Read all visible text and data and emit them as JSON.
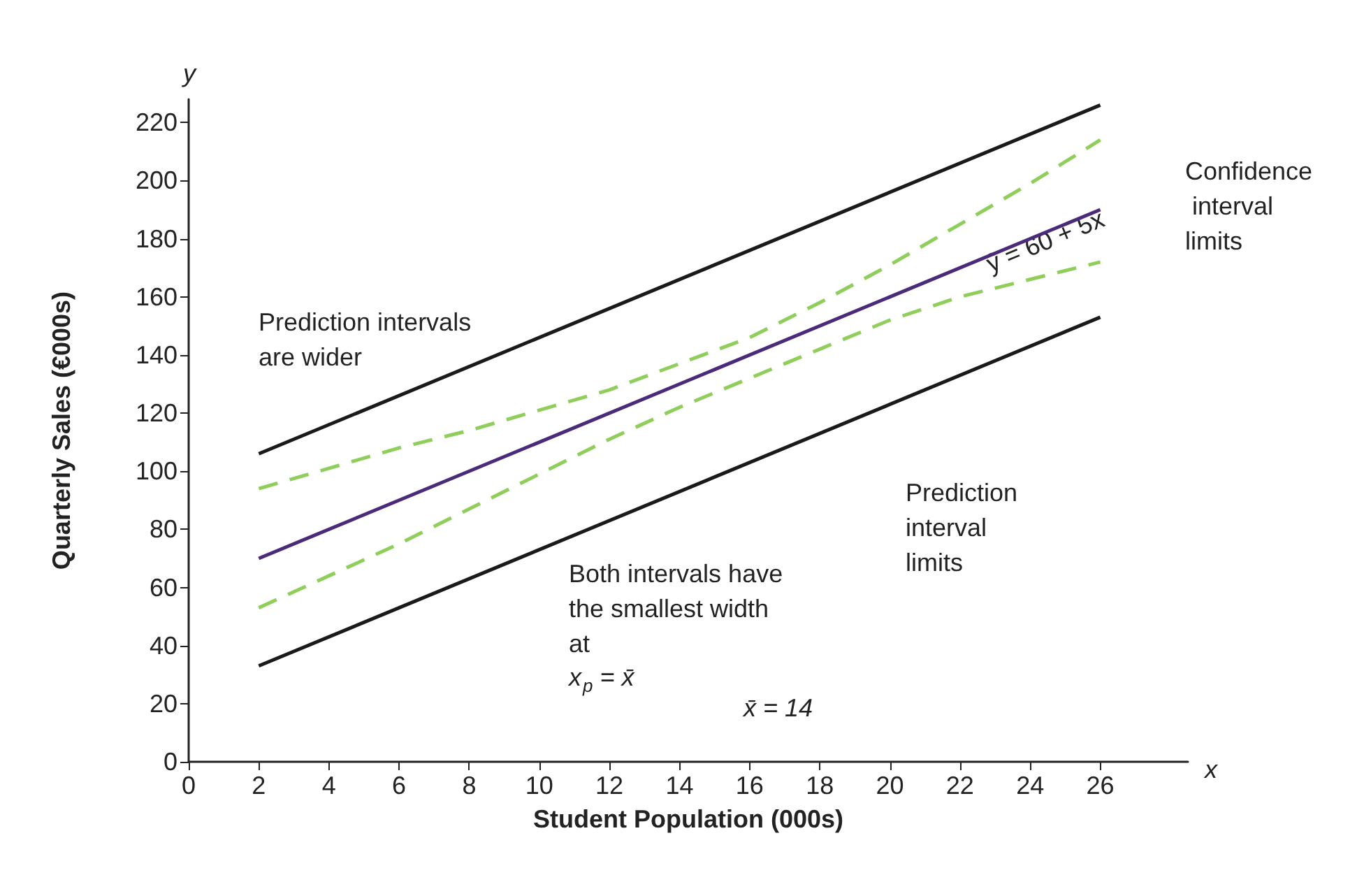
{
  "chart_data": {
    "type": "line",
    "xlabel": "Student Population (000s)",
    "ylabel": "Quarterly Sales (€000s)",
    "xlim": [
      0,
      28.5
    ],
    "xticks": [
      0,
      2,
      4,
      6,
      8,
      10,
      12,
      14,
      16,
      18,
      20,
      22,
      24,
      26
    ],
    "ylim": [
      0,
      228
    ],
    "yticks": [
      0,
      20,
      40,
      60,
      80,
      100,
      120,
      140,
      160,
      180,
      200,
      220
    ],
    "marker": "none",
    "series": [
      {
        "color": "#1a1a1a",
        "x": [
          2,
          26
        ],
        "values": [
          106,
          226
        ]
      },
      {
        "color": "#1a1a1a",
        "x": [
          2,
          26
        ],
        "values": [
          33,
          153
        ]
      },
      {
        "color": "#8fce5a",
        "line_style": "dashed",
        "x": [
          2,
          4,
          6,
          8,
          10,
          12,
          14,
          16,
          18,
          20,
          22,
          24,
          26
        ],
        "values": [
          94,
          101,
          108,
          114,
          121,
          128,
          137,
          146,
          158,
          171,
          185,
          199,
          214
        ]
      },
      {
        "color": "#8fce5a",
        "line_style": "dashed",
        "x": [
          2,
          4,
          6,
          8,
          10,
          12,
          14,
          16,
          18,
          20,
          22,
          24,
          26
        ],
        "values": [
          53,
          64,
          75,
          87,
          99,
          111,
          122,
          132,
          142,
          152,
          160,
          166,
          172
        ]
      },
      {
        "color": "#4b2a7a",
        "x": [
          2,
          26
        ],
        "values": [
          70,
          190
        ]
      }
    ],
    "annotations": [
      "Prediction intervals are wider",
      "Confidence interval limits",
      "ŷ = 60 + 5x",
      "Prediction interval limits",
      "Both intervals have the smallest width at",
      "x$_{p}$ = x̄",
      "x̄ = 14",
      "y",
      "x"
    ]
  }
}
